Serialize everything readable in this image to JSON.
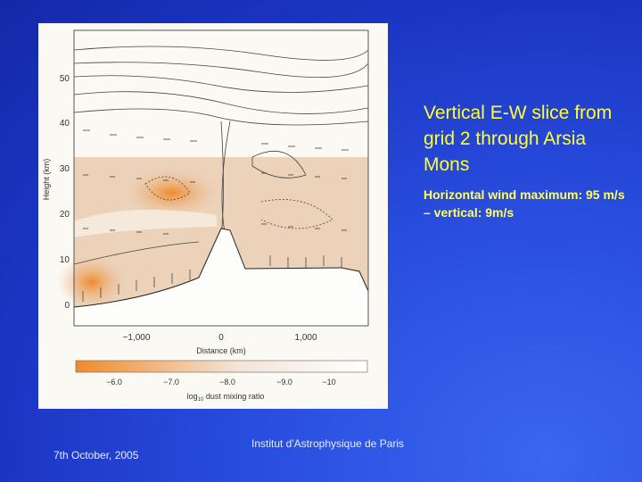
{
  "slide": {
    "title": "Vertical E-W slice from grid 2 through Arsia Mons",
    "subtitle": "Horizontal wind maximum: 95 m/s – vertical: 9m/s",
    "footer_date": "7th October, 2005",
    "footer_institute": "Institut d'Astrophysique de Paris"
  },
  "figure": {
    "y_label": "Height (km)",
    "x_label": "Distance (km)",
    "y_ticks": [
      "0",
      "10",
      "20",
      "30",
      "40",
      "50"
    ],
    "x_ticks": [
      "−1,000",
      "0",
      "1,000"
    ],
    "colorbar_ticks": [
      "−6.0",
      "−7.0",
      "−8.0",
      "−9.0",
      "−10"
    ],
    "colorbar_label_base": "log",
    "colorbar_label_sub": "10",
    "colorbar_label_rest": " dust mixing ratio",
    "colors": {
      "dust_high": "#f08a2a",
      "dust_low": "#ffffff"
    }
  }
}
